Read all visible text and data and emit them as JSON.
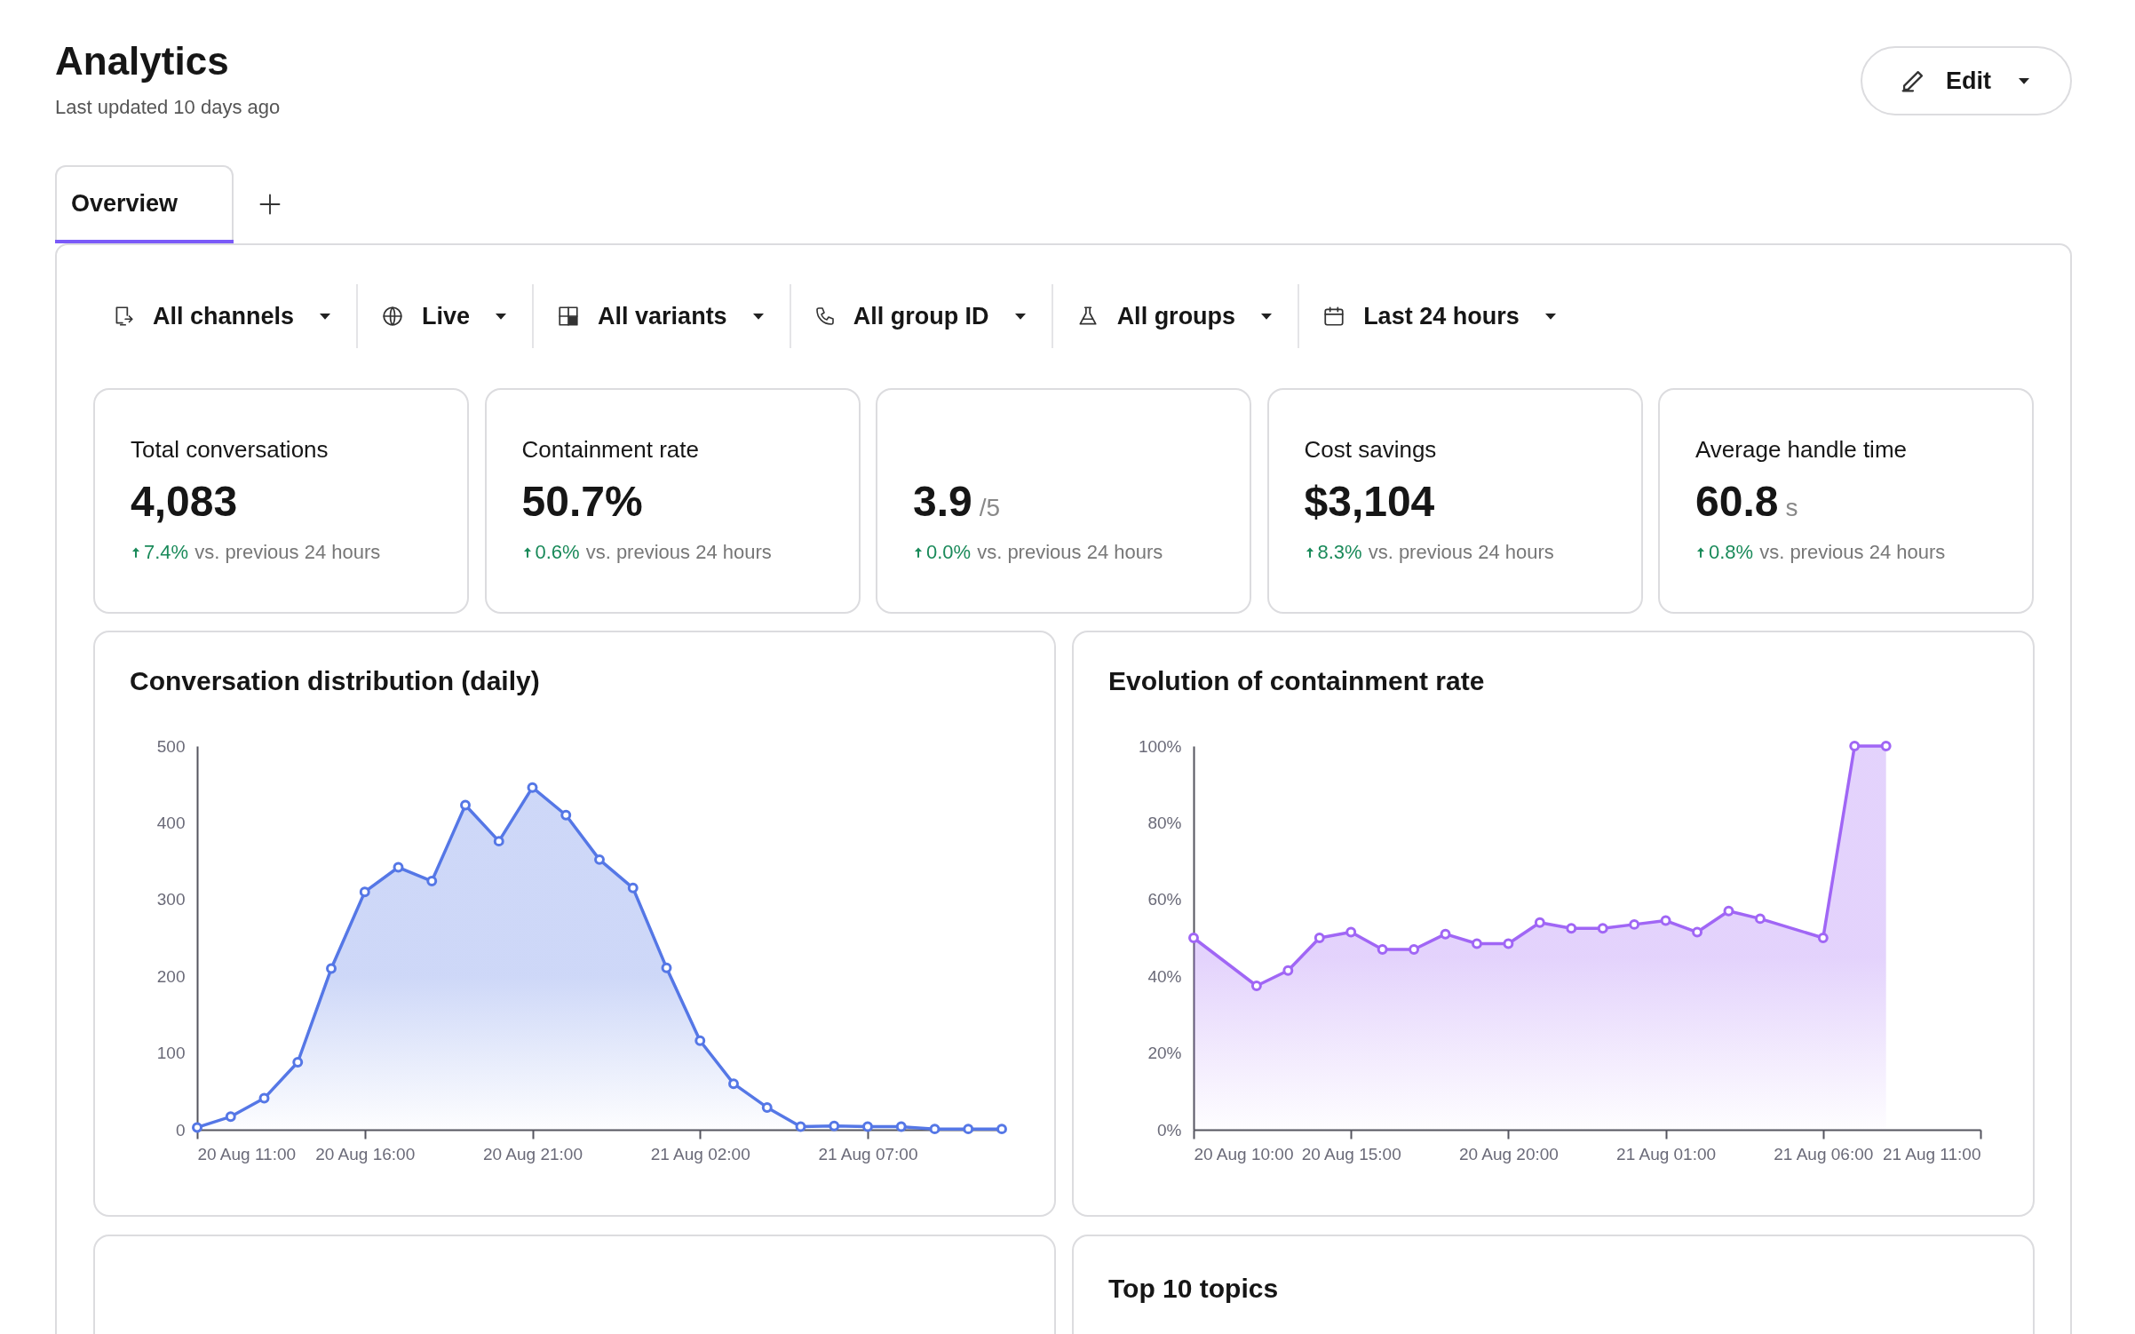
{
  "chart_data": [
    {
      "type": "other",
      "title": "Analytics",
      "subtitle": "Last updated 10 days ago",
      "annotations": [
        "Edit",
        "Overview",
        "All channels",
        "Live",
        "All variants",
        "All group ID",
        "All groups",
        "Last 24 hours",
        "Total conversations",
        "4,083",
        "7.4%",
        "vs. previous 24 hours",
        "Containment rate",
        "50.7%",
        "0.6%",
        "vs. previous 24 hours",
        null,
        "3.9 /5",
        "0.0%",
        "vs. previous 24 hours",
        "Cost savings",
        "$3,104",
        "8.3%",
        "vs. previous 24 hours",
        "Average handle time",
        "60.8 s",
        "0.8%",
        "vs. previous 24 hours"
      ]
    },
    {
      "type": "area",
      "title": "Conversation distribution (daily)",
      "x": [
        "--08-20T11:00",
        "--08-20T12:00",
        "--08-20T13:00",
        "--08-20T14:00",
        "--08-20T15:00",
        "--08-20T16:00",
        "--08-20T17:00",
        "--08-20T18:00",
        "--08-20T19:00",
        "--08-20T20:00",
        "--08-20T21:00",
        "--08-20T22:00",
        "--08-20T23:00",
        "--08-21T00:00",
        "--08-21T01:00",
        "--08-21T02:00",
        "--08-21T03:00",
        "--08-21T04:00",
        "--08-21T05:00",
        "--08-21T06:00",
        "--08-21T07:00",
        "--08-21T08:00",
        "--08-21T09:00",
        "--08-21T10:00",
        "--08-21T11:00"
      ],
      "series": [
        {
          "color": "#5577e6",
          "values": [
            3,
            17,
            41,
            88,
            210,
            310,
            342,
            324,
            423,
            376,
            446,
            410,
            352,
            315,
            211,
            116,
            60,
            29,
            4,
            5,
            4,
            4,
            1,
            1,
            1
          ]
        }
      ],
      "xlim": [
        "--08-20T11:00",
        "--08-21T11:00"
      ],
      "xticks": [
        {
          "value": "--08-20T11:00",
          "label": "20 Aug 11:00"
        },
        {
          "value": "--08-20T16:00",
          "label": "20 Aug 16:00"
        },
        {
          "value": "--08-20T21:00",
          "label": "20 Aug 21:00"
        },
        {
          "value": "--08-21T02:00",
          "label": "21 Aug 02:00"
        },
        {
          "value": "--08-21T07:00",
          "label": "21 Aug 07:00"
        }
      ],
      "ylim": [
        0,
        500
      ],
      "yticks": [
        0,
        100,
        200,
        300,
        400,
        500
      ],
      "grid": false,
      "marker": "circle",
      "line_style": "solid"
    },
    {
      "type": "area",
      "title": "Evolution of containment rate",
      "x": [
        "--08-20T10:00",
        "--08-20T12:00",
        "--08-20T13:00",
        "--08-20T14:00",
        "--08-20T15:00",
        "--08-20T16:00",
        "--08-20T17:00",
        "--08-20T18:00",
        "--08-20T19:00",
        "--08-20T20:00",
        "--08-20T21:00",
        "--08-20T22:00",
        "--08-20T23:00",
        "--08-21T00:00",
        "--08-21T01:00",
        "--08-21T02:00",
        "--08-21T03:00",
        "--08-21T04:00",
        "--08-21T06:00",
        "--08-21T07:00",
        "--08-21T08:00"
      ],
      "series": [
        {
          "color": "#a066f5",
          "values": [
            50,
            37.5,
            41.5,
            50,
            51.5,
            47,
            47,
            51,
            48.5,
            48.5,
            54,
            52.5,
            52.5,
            53.5,
            54.5,
            51.5,
            57,
            55,
            50,
            100,
            100
          ]
        }
      ],
      "xlim": [
        "--08-20T10:00",
        "--08-21T11:00"
      ],
      "xticks": [
        {
          "value": "--08-20T10:00",
          "label": "20 Aug 10:00"
        },
        {
          "value": "--08-20T15:00",
          "label": "20 Aug 15:00"
        },
        {
          "value": "--08-20T20:00",
          "label": "20 Aug 20:00"
        },
        {
          "value": "--08-21T01:00",
          "label": "21 Aug 01:00"
        },
        {
          "value": "--08-21T06:00",
          "label": "21 Aug 06:00"
        },
        {
          "value": "--08-21T11:00",
          "label": "21 Aug 11:00"
        }
      ],
      "ylim": [
        0,
        100
      ],
      "yticks": [
        {
          "value": 0,
          "label": "0%"
        },
        {
          "value": 20,
          "label": "20%"
        },
        {
          "value": 40,
          "label": "40%"
        },
        {
          "value": 60,
          "label": "60%"
        },
        {
          "value": 80,
          "label": "80%"
        },
        {
          "value": 100,
          "label": "100%"
        }
      ],
      "grid": false,
      "marker": "circle",
      "line_style": "solid"
    },
    {
      "type": "other",
      "title": "Top 10 topics"
    }
  ]
}
